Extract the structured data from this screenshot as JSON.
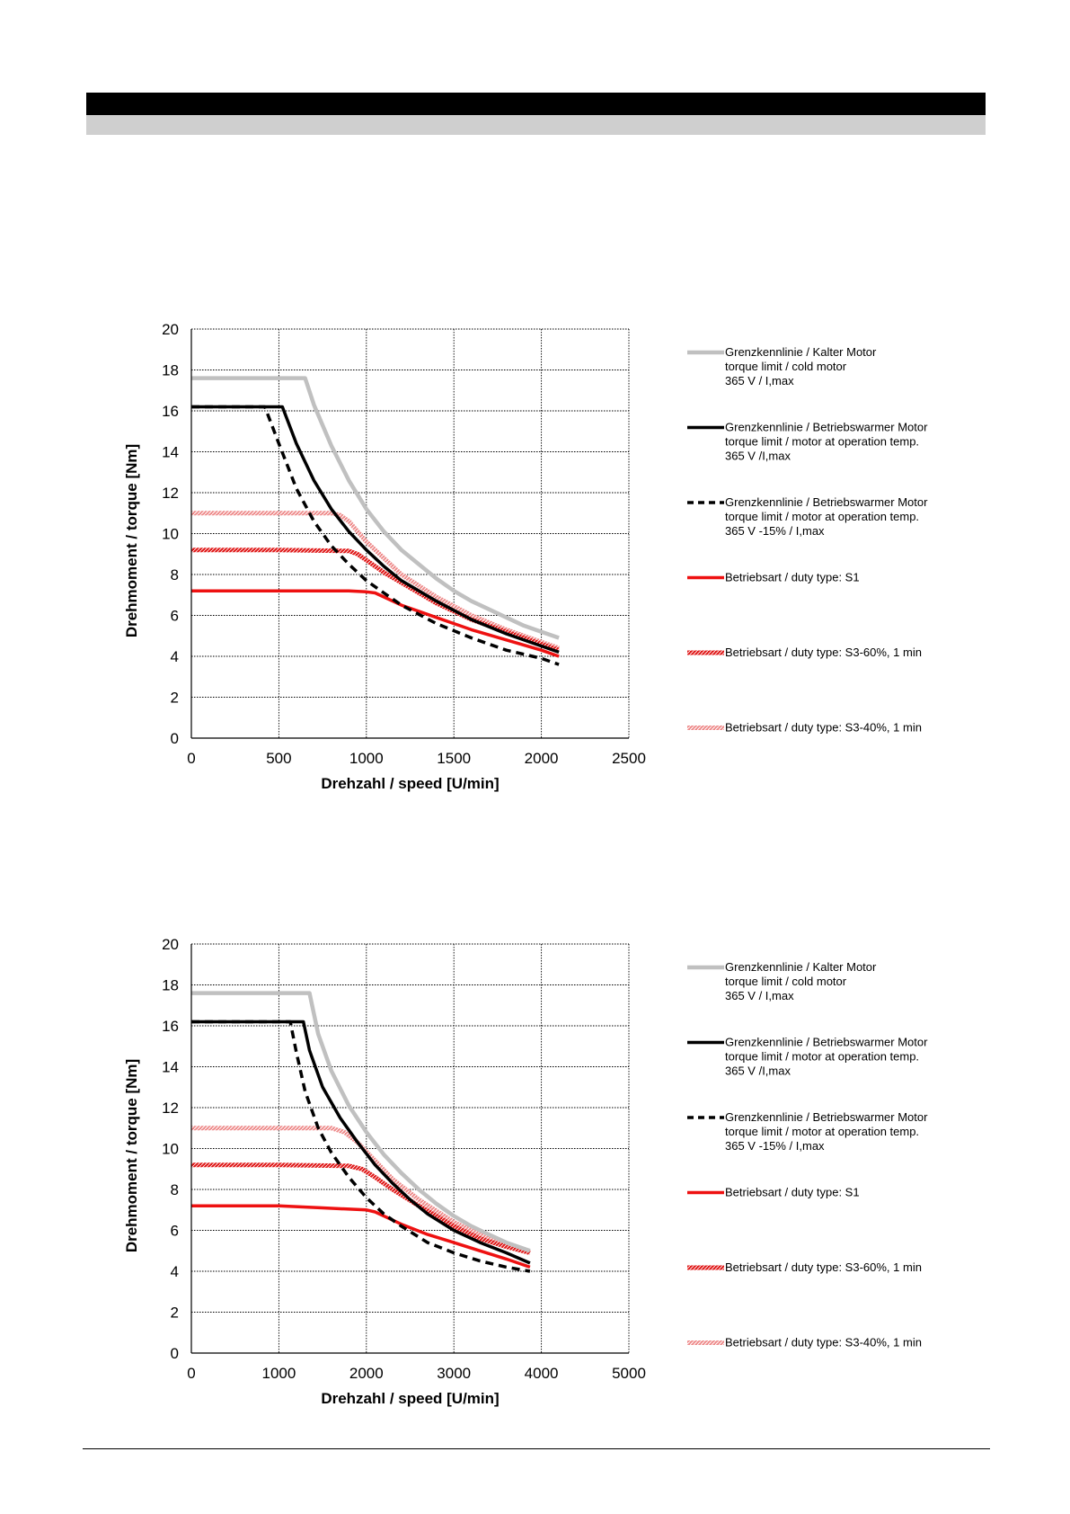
{
  "header": {
    "band_color": "#000000",
    "subband_color": "#cfcfcf"
  },
  "legend_entries": [
    {
      "lines": [
        "Grenzkennlinie / Kalter Motor",
        "torque limit / cold  motor",
        "365 V / I,max"
      ],
      "color": "#c0c0c0",
      "style": "solid"
    },
    {
      "lines": [
        "Grenzkennlinie / Betriebswarmer Motor",
        "torque limit / motor at operation temp.",
        "365 V /I,max"
      ],
      "color": "#000000",
      "style": "solid"
    },
    {
      "lines": [
        "Grenzkennlinie / Betriebswarmer Motor",
        "torque limit / motor at operation temp.",
        "365 V  -15% / I,max"
      ],
      "color": "#000000",
      "style": "dashed"
    },
    {
      "lines": [
        "Betriebsart / duty type: S1"
      ],
      "color": "#ee1111",
      "style": "solid"
    },
    {
      "lines": [
        "Betriebsart / duty type: S3-60%, 1 min"
      ],
      "color": "#e01a1a",
      "style": "hatched"
    },
    {
      "lines": [
        "Betriebsart / duty type: S3-40%, 1 min"
      ],
      "color": "#ee8a8a",
      "style": "hatched"
    }
  ],
  "chart_data": [
    {
      "type": "line",
      "xlabel": "Drehzahl / speed [U/min]",
      "ylabel": "Drehmoment / torque [Nm]",
      "xlim": [
        0,
        2500
      ],
      "ylim": [
        0,
        20
      ],
      "xticks": [
        "0",
        "500",
        "1000",
        "1500",
        "2000",
        "2500"
      ],
      "yticks": [
        "0",
        "2",
        "4",
        "6",
        "8",
        "10",
        "12",
        "14",
        "16",
        "18",
        "20"
      ],
      "grid": true,
      "legend_position": "right",
      "series": [
        {
          "name": "Grenzkennlinie / Kalter Motor",
          "x": [
            0,
            650,
            700,
            800,
            900,
            1000,
            1100,
            1200,
            1300,
            1400,
            1500,
            1600,
            1700,
            1800,
            1900,
            2000,
            2100
          ],
          "y": [
            17.6,
            17.6,
            16.3,
            14.3,
            12.6,
            11.2,
            10.1,
            9.2,
            8.5,
            7.8,
            7.2,
            6.7,
            6.3,
            5.9,
            5.5,
            5.2,
            4.9
          ]
        },
        {
          "name": "Grenzkennlinie / Betriebswarmer Motor",
          "x": [
            0,
            520,
            600,
            700,
            800,
            900,
            1000,
            1100,
            1200,
            1400,
            1600,
            1800,
            2000,
            2100
          ],
          "y": [
            16.2,
            16.2,
            14.4,
            12.6,
            11.2,
            10.1,
            9.2,
            8.4,
            7.7,
            6.7,
            5.8,
            5.1,
            4.5,
            4.2
          ]
        },
        {
          "name": "Grenzkennlinie / Betriebswarmer Motor",
          "x": [
            0,
            420,
            500,
            600,
            700,
            800,
            900,
            1000,
            1100,
            1200,
            1400,
            1600,
            1800,
            2000,
            2100
          ],
          "y": [
            16.2,
            16.2,
            14.4,
            12.2,
            10.6,
            9.4,
            8.5,
            7.7,
            7.1,
            6.5,
            5.6,
            4.9,
            4.3,
            3.9,
            3.6
          ]
        },
        {
          "name": "Betriebsart / duty type: S1",
          "x": [
            0,
            500,
            800,
            900,
            1000,
            1050,
            1100,
            1200,
            1400,
            1600,
            1800,
            2000,
            2100
          ],
          "y": [
            7.2,
            7.2,
            7.2,
            7.2,
            7.15,
            7.1,
            6.9,
            6.5,
            5.9,
            5.3,
            4.8,
            4.3,
            4.0
          ]
        },
        {
          "name": "Betriebsart / duty type: S3-60%, 1 min",
          "x": [
            0,
            500,
            900,
            950,
            1000,
            1100,
            1200,
            1400,
            1600,
            1800,
            2000,
            2100
          ],
          "y": [
            9.2,
            9.2,
            9.15,
            9.0,
            8.7,
            8.1,
            7.6,
            6.6,
            5.8,
            5.2,
            4.6,
            4.3
          ]
        },
        {
          "name": "Betriebsart / duty type: S3-40%, 1 min",
          "x": [
            0,
            400,
            800,
            850,
            900,
            950,
            1000,
            1100,
            1200,
            1400,
            1600,
            1800,
            2000,
            2100
          ],
          "y": [
            11.0,
            11.0,
            11.0,
            10.9,
            10.6,
            10.1,
            9.6,
            8.8,
            8.0,
            6.9,
            6.0,
            5.3,
            4.7,
            4.4
          ]
        }
      ]
    },
    {
      "type": "line",
      "xlabel": "Drehzahl / speed [U/min]",
      "ylabel": "Drehmoment / torque [Nm]",
      "xlim": [
        0,
        5000
      ],
      "ylim": [
        0,
        20
      ],
      "xticks": [
        "0",
        "1000",
        "2000",
        "3000",
        "4000",
        "5000"
      ],
      "yticks": [
        "0",
        "2",
        "4",
        "6",
        "8",
        "10",
        "12",
        "14",
        "16",
        "18",
        "20"
      ],
      "grid": true,
      "legend_position": "right",
      "series": [
        {
          "name": "Grenzkennlinie / Kalter Motor",
          "x": [
            0,
            1350,
            1450,
            1600,
            1800,
            2000,
            2200,
            2400,
            2600,
            2800,
            3000,
            3200,
            3400,
            3600,
            3870
          ],
          "y": [
            17.6,
            17.6,
            15.6,
            13.8,
            12.1,
            10.8,
            9.7,
            8.8,
            8.0,
            7.3,
            6.7,
            6.2,
            5.8,
            5.4,
            5.0
          ]
        },
        {
          "name": "Grenzkennlinie / Betriebswarmer Motor",
          "x": [
            0,
            1280,
            1350,
            1500,
            1700,
            1900,
            2100,
            2300,
            2500,
            2700,
            3000,
            3300,
            3600,
            3870
          ],
          "y": [
            16.2,
            16.2,
            14.8,
            13.0,
            11.5,
            10.3,
            9.2,
            8.3,
            7.5,
            6.8,
            6.0,
            5.4,
            4.9,
            4.4
          ]
        },
        {
          "name": "Grenzkennlinie / Betriebswarmer Motor",
          "x": [
            0,
            1130,
            1200,
            1300,
            1450,
            1600,
            1800,
            2000,
            2200,
            2400,
            2700,
            3000,
            3300,
            3600,
            3870
          ],
          "y": [
            16.2,
            16.2,
            14.7,
            12.8,
            11.0,
            9.8,
            8.6,
            7.6,
            6.8,
            6.2,
            5.4,
            4.9,
            4.5,
            4.2,
            4.0
          ]
        },
        {
          "name": "Betriebsart / duty type: S1",
          "x": [
            0,
            1000,
            1500,
            2000,
            2100,
            2200,
            2400,
            2700,
            3000,
            3300,
            3600,
            3870
          ],
          "y": [
            7.2,
            7.2,
            7.1,
            7.0,
            6.9,
            6.7,
            6.3,
            5.8,
            5.4,
            5.0,
            4.6,
            4.2
          ]
        },
        {
          "name": "Betriebsart / duty type: S3-60%, 1 min",
          "x": [
            0,
            1000,
            1800,
            1950,
            2100,
            2300,
            2600,
            3000,
            3300,
            3600,
            3870
          ],
          "y": [
            9.2,
            9.2,
            9.15,
            9.0,
            8.6,
            8.0,
            7.2,
            6.2,
            5.6,
            5.2,
            4.9
          ]
        },
        {
          "name": "Betriebsart / duty type: S3-40%, 1 min",
          "x": [
            0,
            1000,
            1600,
            1750,
            1900,
            2100,
            2300,
            2600,
            3000,
            3300,
            3600,
            3870
          ],
          "y": [
            11.0,
            11.0,
            11.0,
            10.8,
            10.3,
            9.4,
            8.5,
            7.5,
            6.4,
            5.8,
            5.3,
            4.9
          ]
        }
      ]
    }
  ]
}
